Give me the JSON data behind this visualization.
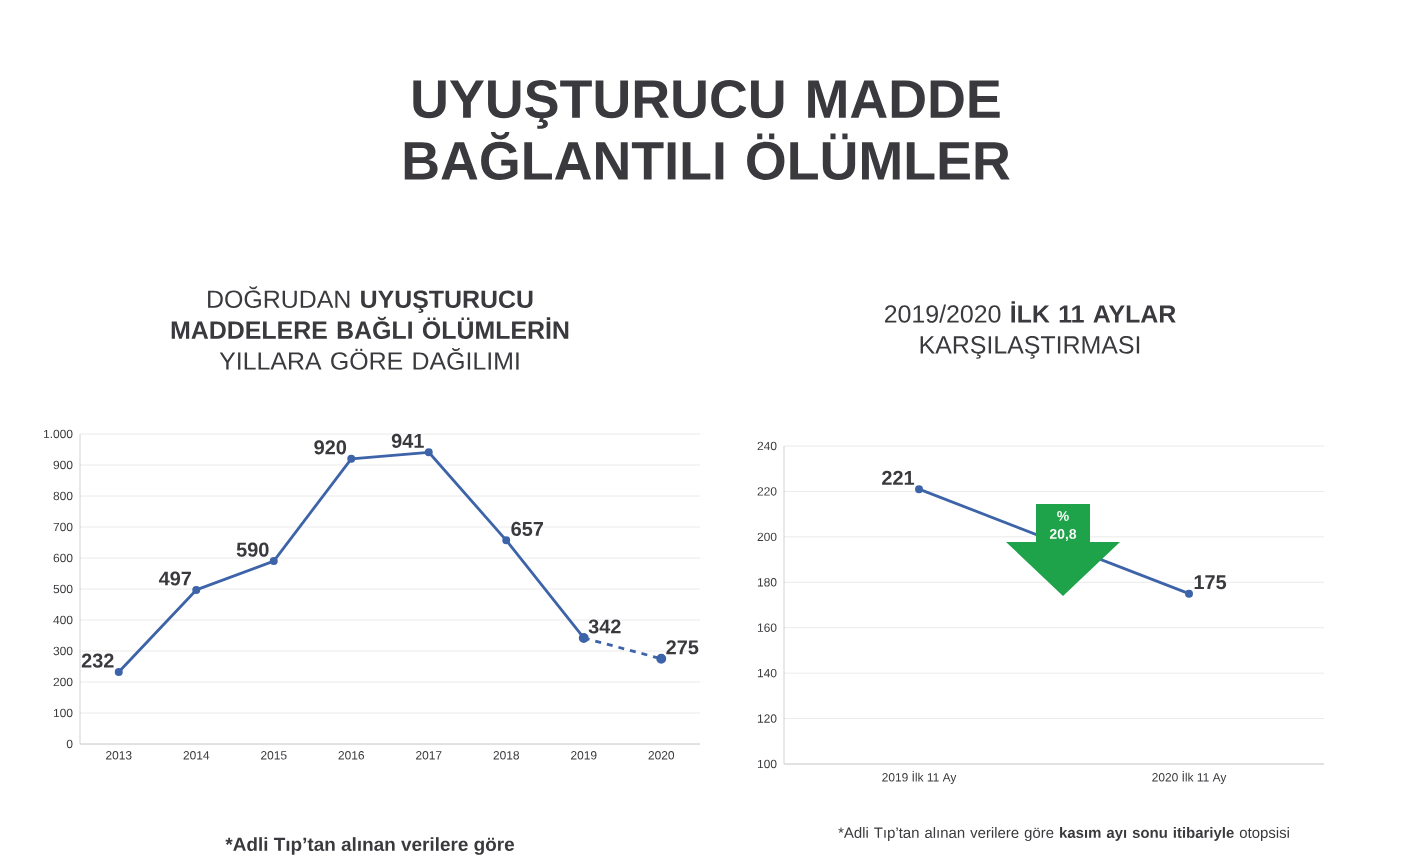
{
  "chart_data": [
    {
      "type": "line",
      "title": "UYUŞTURUCU MADDE BAĞLANTILI ÖLÜMLER",
      "subtitle": "DOĞRUDAN **UYUŞTURUCU MADDELERE BAĞLI ÖLÜMLERİN** YILLARA GÖRE DAĞILIMI",
      "categories": [
        "2013",
        "2014",
        "2015",
        "2016",
        "2017",
        "2018",
        "2019",
        "2020"
      ],
      "series": [
        {
          "color": "#3d63a8",
          "values": [
            232,
            497,
            590,
            920,
            941,
            657,
            342,
            null
          ],
          "line_style": "solid"
        },
        {
          "color": "#3d63a8",
          "values": [
            null,
            null,
            null,
            null,
            null,
            null,
            342,
            275
          ],
          "line_style": "dashed",
          "value_labels": [
            null,
            null,
            null,
            null,
            null,
            null,
            null,
            "275"
          ]
        }
      ],
      "ylim": [
        0,
        1000
      ],
      "yticks": [
        0,
        100,
        200,
        300,
        400,
        500,
        600,
        700,
        800,
        900,
        {
          "value": 1000,
          "label": "1.000"
        }
      ],
      "grid": "y",
      "marker": "circle",
      "data_labels": true,
      "annotations": [
        "*Adli Tıp’tan alınan verilere göre"
      ]
    },
    {
      "type": "line",
      "title": "2019/2020 **İLK 11 AYLAR** KARŞILAŞTIRMASI",
      "categories": [
        "2019 İlk 11 Ay",
        "2020 İlk 11 Ay"
      ],
      "series": [
        {
          "color": "#3d63a8",
          "values": [
            221,
            175
          ]
        }
      ],
      "ylim": [
        100,
        240
      ],
      "yticks": [
        100,
        120,
        140,
        160,
        180,
        200,
        220,
        240
      ],
      "grid": "y",
      "marker": "circle",
      "data_labels": true,
      "annotations": [
        "% 20,8",
        "*Adli Tıp’tan alınan verilere göre **kasım ayı sonu itibariyle** otopsisi"
      ]
    }
  ]
}
